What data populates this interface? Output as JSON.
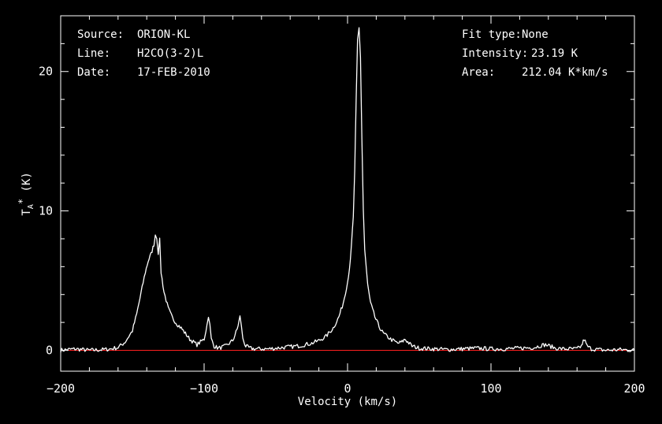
{
  "info": {
    "source_label": "Source:",
    "source_value": "ORION-KL",
    "line_label": "Line:",
    "line_value": "H2CO(3-2)L",
    "date_label": "Date:",
    "date_value": "17-FEB-2010",
    "fit_label": "Fit type:",
    "fit_value": "None",
    "intensity_label": "Intensity:",
    "intensity_value": "23.19 K",
    "area_label": "Area:",
    "area_value": "212.04 K*km/s"
  },
  "chart_data": {
    "type": "line",
    "xlabel": "Velocity (km/s)",
    "ylabel": "T_A* (K)",
    "xlim": [
      -200,
      200
    ],
    "ylim": [
      -1.5,
      24
    ],
    "xticks": [
      -200,
      -100,
      0,
      100,
      200
    ],
    "yticks": [
      0,
      10,
      20
    ],
    "grid": false,
    "baseline": 0,
    "colors": {
      "spectrum": "#ffffff",
      "baseline": "#ff2020",
      "axes": "#ffffff"
    },
    "series": [
      {
        "x": [
          -200,
          -190,
          -180,
          -170,
          -165,
          -160,
          -155,
          -150,
          -147,
          -144,
          -141,
          -139,
          -137,
          -135,
          -134,
          -133,
          -132,
          -131,
          -130,
          -128,
          -125,
          -122,
          -119,
          -116,
          -113,
          -110,
          -105,
          -100,
          -98,
          -97,
          -96,
          -95,
          -93,
          -90,
          -85,
          -80,
          -77,
          -75,
          -74,
          -73,
          -71,
          -68,
          -65,
          -60,
          -55,
          -50,
          -45,
          -40,
          -35,
          -30,
          -25,
          -20,
          -15,
          -10,
          -6,
          -3,
          0,
          2,
          4,
          5,
          6,
          7,
          8,
          9,
          10,
          11,
          12,
          14,
          16,
          19,
          22,
          25,
          30,
          35,
          38,
          40,
          42,
          45,
          50,
          60,
          70,
          80,
          90,
          100,
          110,
          120,
          130,
          135,
          138,
          141,
          145,
          150,
          160,
          163,
          165,
          167,
          170,
          180,
          190,
          200
        ],
        "y": [
          0,
          0.1,
          0,
          0.05,
          0.1,
          0.2,
          0.6,
          1.4,
          2.6,
          4.1,
          5.6,
          6.4,
          6.9,
          7.6,
          8.3,
          8.1,
          7.0,
          7.9,
          5.6,
          4.2,
          3.0,
          2.3,
          1.9,
          1.6,
          1.2,
          0.8,
          0.4,
          0.8,
          1.8,
          2.5,
          1.8,
          0.8,
          0.3,
          0.15,
          0.3,
          0.7,
          1.5,
          2.4,
          1.8,
          0.8,
          0.3,
          0.15,
          0.1,
          0.1,
          0.1,
          0.15,
          0.2,
          0.25,
          0.3,
          0.4,
          0.5,
          0.7,
          1.0,
          1.6,
          2.4,
          3.4,
          4.9,
          6.4,
          9.6,
          12.8,
          17.8,
          22.2,
          23.1,
          21.0,
          15.2,
          10.1,
          7.2,
          4.7,
          3.4,
          2.4,
          1.7,
          1.2,
          0.8,
          0.5,
          0.6,
          0.8,
          0.6,
          0.3,
          0.15,
          0.1,
          0.05,
          0.1,
          0.15,
          0.1,
          0.1,
          0.15,
          0.2,
          0.35,
          0.4,
          0.3,
          0.15,
          0.1,
          0.1,
          0.3,
          0.8,
          0.3,
          0.1,
          0,
          0.05,
          0
        ]
      }
    ]
  }
}
